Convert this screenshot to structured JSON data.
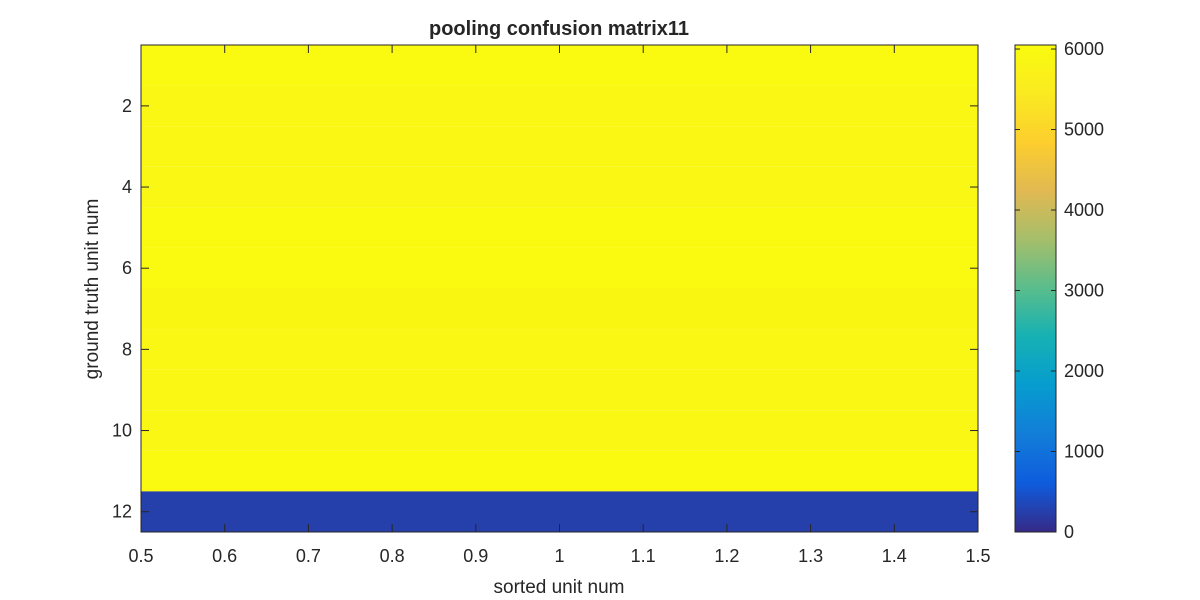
{
  "chart_data": {
    "type": "heatmap",
    "title": "pooling confusion matrix11",
    "xlabel": "sorted unit num",
    "ylabel": "ground truth unit num",
    "xlim": [
      0.5,
      1.5
    ],
    "ylim": [
      0.5,
      12.5
    ],
    "x_ticks": [
      0.5,
      0.6,
      0.7,
      0.8,
      0.9,
      1,
      1.1,
      1.2,
      1.3,
      1.4,
      1.5
    ],
    "x_tick_labels": [
      "0.5",
      "0.6",
      "0.7",
      "0.8",
      "0.9",
      "1",
      "1.1",
      "1.2",
      "1.3",
      "1.4",
      "1.5"
    ],
    "y_ticks": [
      2,
      4,
      6,
      8,
      10,
      12
    ],
    "y_tick_labels": [
      "2",
      "4",
      "6",
      "8",
      "10",
      "12"
    ],
    "y_reversed": true,
    "columns": [
      1
    ],
    "rows": [
      1,
      2,
      3,
      4,
      5,
      6,
      7,
      8,
      9,
      10,
      11,
      12
    ],
    "values": [
      [
        6000
      ],
      [
        5900
      ],
      [
        5900
      ],
      [
        5900
      ],
      [
        6000
      ],
      [
        6000
      ],
      [
        5920
      ],
      [
        5900
      ],
      [
        5900
      ],
      [
        5900
      ],
      [
        6000
      ],
      [
        250
      ]
    ],
    "colormap": "parula",
    "colorbar": {
      "range": [
        0,
        6050
      ],
      "ticks": [
        0,
        1000,
        2000,
        3000,
        4000,
        5000,
        6000
      ],
      "tick_labels": [
        "0",
        "1000",
        "2000",
        "3000",
        "4000",
        "5000",
        "6000"
      ],
      "placement": "right"
    },
    "grid": false
  }
}
